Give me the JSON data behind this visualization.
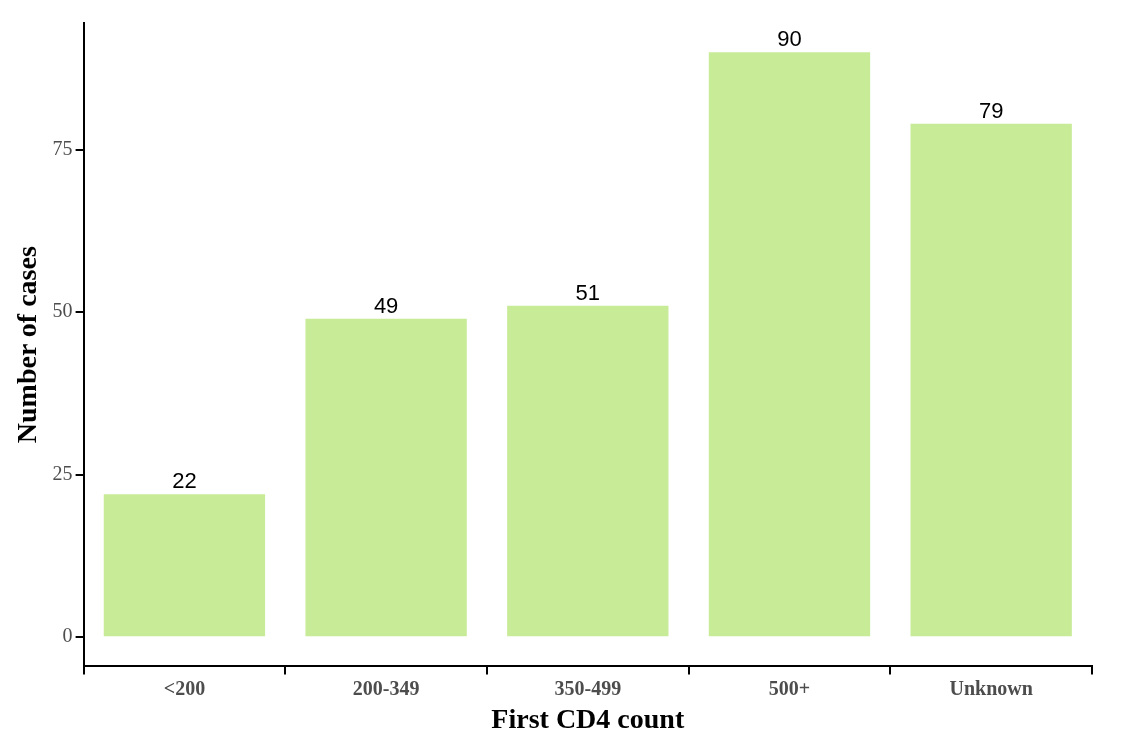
{
  "chart_data": {
    "type": "bar",
    "xlabel": "First CD4 count",
    "ylabel": "Number of cases",
    "categories": [
      "<200",
      "200-349",
      "350-499",
      "500+",
      "Unknown"
    ],
    "values": [
      22,
      49,
      51,
      90,
      79
    ],
    "color": "#c8eb98",
    "ylim": [
      -4.5,
      94.5
    ],
    "yticks": [
      0,
      25,
      50,
      75
    ],
    "grid": false,
    "data_labels": true
  }
}
